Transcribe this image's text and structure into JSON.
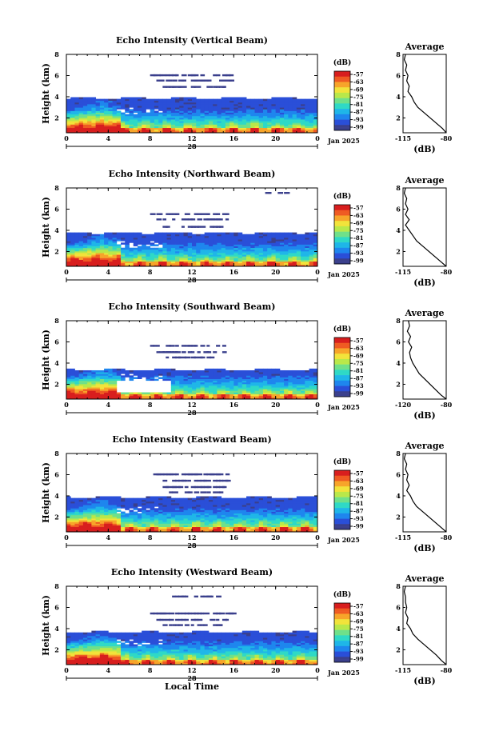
{
  "chart_data": [
    {
      "type": "heatmap",
      "title": "Echo Intensity (Vertical Beam)",
      "ylabel": "Height (km)",
      "x_ticks": [
        "0",
        "4",
        "8",
        "12",
        "16",
        "20",
        "0"
      ],
      "y_ticks": [
        "2",
        "4",
        "6",
        "8"
      ],
      "xlim": [
        0,
        24
      ],
      "ylim": [
        0.6,
        8
      ],
      "date_day": "28",
      "date_month": "Jan 2025",
      "colorbar": {
        "unit": "(dB)",
        "labels": [
          "-57",
          "-63",
          "-69",
          "-75",
          "-81",
          "-87",
          "-93",
          "-99"
        ]
      },
      "cloud": {
        "top_km": 3.8,
        "top_until_h": 23.8,
        "fragments_km": [
          6.0,
          5.5,
          4.9
        ]
      },
      "profile": {
        "title": "Average",
        "xlabel": "(dB)",
        "x_ticks": [
          "-115",
          "-80"
        ],
        "xlim": [
          -115,
          -80
        ],
        "y_ticks": [
          "2",
          "4",
          "6",
          "8"
        ],
        "heights_km": [
          0.6,
          1.0,
          1.5,
          2.0,
          2.5,
          3.0,
          3.5,
          4.0,
          4.5,
          5.0,
          5.5,
          6.0,
          6.5,
          7.0,
          7.5,
          8.0
        ],
        "values_db": [
          -80,
          -83,
          -88,
          -93,
          -98,
          -103,
          -106,
          -108,
          -111,
          -110,
          -112,
          -111,
          -113,
          -112,
          -114,
          -113
        ]
      }
    },
    {
      "type": "heatmap",
      "title": "Echo Intensity (Northward Beam)",
      "ylabel": "Height (km)",
      "x_ticks": [
        "0",
        "4",
        "8",
        "12",
        "16",
        "20",
        "0"
      ],
      "y_ticks": [
        "2",
        "4",
        "6",
        "8"
      ],
      "xlim": [
        0,
        24
      ],
      "ylim": [
        0.6,
        8
      ],
      "date_day": "28",
      "date_month": "Jan 2025",
      "colorbar": {
        "unit": "(dB)",
        "labels": [
          "-57",
          "-63",
          "-69",
          "-75",
          "-81",
          "-87",
          "-93",
          "-99"
        ]
      },
      "cloud": {
        "top_km": 3.7,
        "top_until_h": 23.8,
        "fragments_km": [
          5.5,
          5.0,
          4.3,
          7.5
        ]
      },
      "profile": {
        "title": "Average",
        "xlabel": "(dB)",
        "x_ticks": [
          "-115",
          "-80"
        ],
        "xlim": [
          -115,
          -80
        ],
        "y_ticks": [
          "2",
          "4",
          "6",
          "8"
        ],
        "heights_km": [
          0.6,
          1.0,
          1.5,
          2.0,
          2.5,
          3.0,
          3.5,
          4.0,
          4.5,
          5.0,
          5.5,
          6.0,
          6.5,
          7.0,
          7.5,
          8.0
        ],
        "values_db": [
          -80,
          -84,
          -89,
          -94,
          -99,
          -104,
          -107,
          -110,
          -113,
          -110,
          -113,
          -111,
          -113,
          -112,
          -114,
          -113
        ]
      }
    },
    {
      "type": "heatmap",
      "title": "Echo Intensity (Southward Beam)",
      "ylabel": "Height (km)",
      "x_ticks": [
        "0",
        "4",
        "8",
        "12",
        "16",
        "20",
        "0"
      ],
      "y_ticks": [
        "2",
        "4",
        "6",
        "8"
      ],
      "xlim": [
        0,
        24
      ],
      "ylim": [
        0.6,
        8
      ],
      "date_day": "28",
      "date_month": "Jan 2025",
      "colorbar": {
        "unit": "(dB)",
        "labels": [
          "-57",
          "-63",
          "-69",
          "-75",
          "-81",
          "-87",
          "-93",
          "-99"
        ]
      },
      "cloud": {
        "top_km": 3.3,
        "top_until_h": 23.8,
        "fragments_km": [
          5.6,
          5.0,
          4.5
        ]
      },
      "profile": {
        "title": "Average",
        "xlabel": "(dB)",
        "x_ticks": [
          "-120",
          "-80"
        ],
        "xlim": [
          -120,
          -80
        ],
        "y_ticks": [
          "2",
          "4",
          "6",
          "8"
        ],
        "heights_km": [
          0.6,
          1.0,
          1.5,
          2.0,
          2.5,
          3.0,
          3.5,
          4.0,
          4.5,
          5.0,
          5.5,
          6.0,
          6.5,
          7.0,
          7.5,
          8.0
        ],
        "values_db": [
          -80,
          -85,
          -90,
          -95,
          -100,
          -105,
          -108,
          -111,
          -113,
          -114,
          -112,
          -115,
          -113,
          -116,
          -114,
          -115
        ]
      }
    },
    {
      "type": "heatmap",
      "title": "Echo Intensity (Eastward Beam)",
      "ylabel": "Height (km)",
      "x_ticks": [
        "0",
        "4",
        "8",
        "12",
        "16",
        "20",
        "0"
      ],
      "y_ticks": [
        "2",
        "4",
        "6",
        "8"
      ],
      "xlim": [
        0,
        24
      ],
      "ylim": [
        0.6,
        8
      ],
      "date_day": "28",
      "date_month": "Jan 2025",
      "colorbar": {
        "unit": "(dB)",
        "labels": [
          "-57",
          "-63",
          "-69",
          "-75",
          "-81",
          "-87",
          "-93",
          "-99"
        ]
      },
      "cloud": {
        "top_km": 3.8,
        "top_until_h": 23.8,
        "fragments_km": [
          6.0,
          5.4,
          4.8,
          4.3
        ]
      },
      "profile": {
        "title": "Average",
        "xlabel": "(dB)",
        "x_ticks": [
          "-115",
          "-80"
        ],
        "xlim": [
          -115,
          -80
        ],
        "y_ticks": [
          "2",
          "4",
          "6",
          "8"
        ],
        "heights_km": [
          0.6,
          1.0,
          1.5,
          2.0,
          2.5,
          3.0,
          3.5,
          4.0,
          4.5,
          5.0,
          5.5,
          6.0,
          6.5,
          7.0,
          7.5,
          8.0
        ],
        "values_db": [
          -80,
          -84,
          -89,
          -94,
          -99,
          -104,
          -107,
          -109,
          -112,
          -110,
          -112,
          -111,
          -113,
          -112,
          -114,
          -113
        ]
      }
    },
    {
      "type": "heatmap",
      "title": "Echo Intensity (Westward Beam)",
      "ylabel": "Height (km)",
      "x_ticks": [
        "0",
        "4",
        "8",
        "12",
        "16",
        "20",
        "0"
      ],
      "y_ticks": [
        "2",
        "4",
        "6",
        "8"
      ],
      "xlim": [
        0,
        24
      ],
      "ylim": [
        0.6,
        8
      ],
      "date_day": "28",
      "date_month": "Jan 2025",
      "xlabel": "Local Time",
      "colorbar": {
        "unit": "(dB)",
        "labels": [
          "-57",
          "-63",
          "-69",
          "-75",
          "-81",
          "-87",
          "-93",
          "-99"
        ]
      },
      "cloud": {
        "top_km": 3.6,
        "top_until_h": 23.8,
        "fragments_km": [
          5.4,
          4.8,
          4.3,
          7.0
        ]
      },
      "profile": {
        "title": "Average",
        "xlabel": "(dB)",
        "x_ticks": [
          "-115",
          "-80"
        ],
        "xlim": [
          -115,
          -80
        ],
        "y_ticks": [
          "2",
          "4",
          "6",
          "8"
        ],
        "heights_km": [
          0.6,
          1.0,
          1.5,
          2.0,
          2.5,
          3.0,
          3.5,
          4.0,
          4.5,
          5.0,
          5.5,
          6.0,
          6.5,
          7.0,
          7.5,
          8.0
        ],
        "values_db": [
          -80,
          -84,
          -88,
          -93,
          -98,
          -103,
          -107,
          -109,
          -112,
          -111,
          -113,
          -112,
          -113,
          -113,
          -114,
          -113
        ]
      }
    }
  ]
}
